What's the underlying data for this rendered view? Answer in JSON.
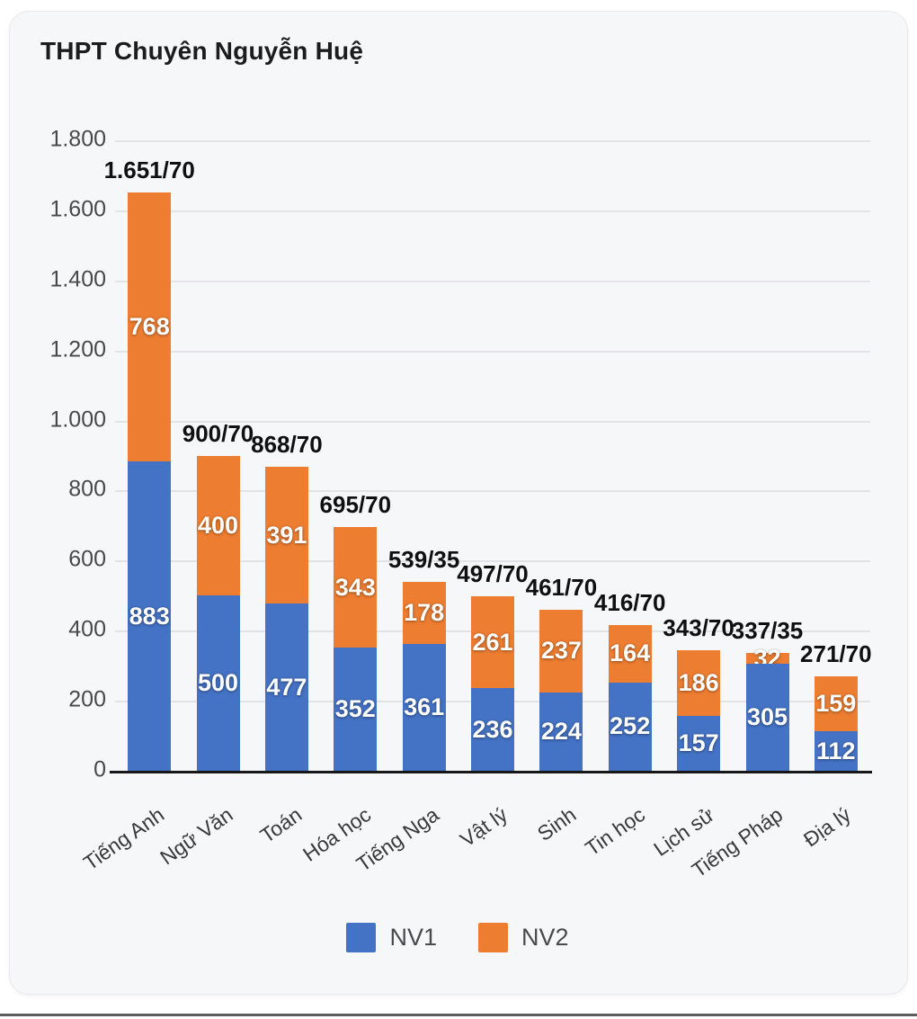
{
  "title": "THPT Chuyên Nguyễn Huệ",
  "colors": {
    "nv1_blue": "#4472C4",
    "nv2_orange": "#ED7D31",
    "card_background": "#f6f7f9",
    "gridline": "#e3e3e7",
    "axis": "#17171a",
    "bar_value_text": "#ffffff",
    "total_text": "#101011"
  },
  "legend": {
    "items": [
      {
        "label": "NV1",
        "color": "#4472C4"
      },
      {
        "label": "NV2",
        "color": "#ED7D31"
      }
    ]
  },
  "chart_data": {
    "type": "bar",
    "stacked": true,
    "title": "THPT Chuyên Nguyễn Huệ",
    "categories": [
      "Tiếng Anh",
      "Ngữ Văn",
      "Toán",
      "Hóa học",
      "Tiếng Nga",
      "Vật lý",
      "Sinh",
      "Tin học",
      "Lịch sử",
      "Tiếng Pháp",
      "Địa lý"
    ],
    "series": [
      {
        "name": "NV1",
        "color": "#4472C4",
        "values": [
          883,
          500,
          477,
          352,
          361,
          236,
          224,
          252,
          157,
          305,
          112
        ]
      },
      {
        "name": "NV2",
        "color": "#ED7D31",
        "values": [
          768,
          400,
          391,
          343,
          178,
          261,
          237,
          164,
          186,
          32,
          159
        ]
      }
    ],
    "total_labels": [
      "1.651/70",
      "900/70",
      "868/70",
      "695/70",
      "539/35",
      "497/70",
      "461/70",
      "416/70",
      "343/70",
      "337/35",
      "271/70"
    ],
    "xlabel": "",
    "ylabel": "",
    "ylim": [
      0,
      1800
    ],
    "grid": true,
    "legend_position": "bottom",
    "yticks": [
      {
        "value": 0,
        "label": "0"
      },
      {
        "value": 200,
        "label": "200"
      },
      {
        "value": 400,
        "label": "400"
      },
      {
        "value": 600,
        "label": "600"
      },
      {
        "value": 800,
        "label": "800"
      },
      {
        "value": 1000,
        "label": "1.000"
      },
      {
        "value": 1200,
        "label": "1.200"
      },
      {
        "value": 1400,
        "label": "1.400"
      },
      {
        "value": 1600,
        "label": "1.600"
      },
      {
        "value": 1800,
        "label": "1.800"
      }
    ]
  }
}
